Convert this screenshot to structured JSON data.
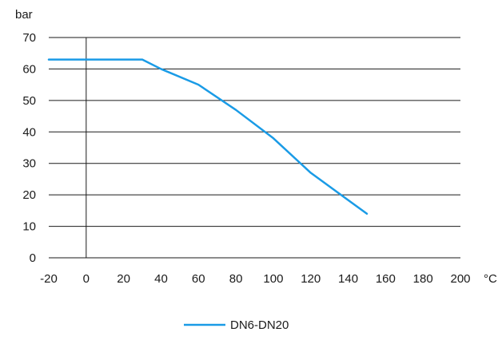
{
  "chart_data": {
    "type": "line",
    "ylabel": "bar",
    "xlabel": "°C",
    "xlim": [
      -20,
      200
    ],
    "ylim": [
      0,
      70
    ],
    "x_ticks": [
      -20,
      0,
      20,
      40,
      60,
      80,
      100,
      120,
      140,
      160,
      180,
      200
    ],
    "y_ticks": [
      0,
      10,
      20,
      30,
      40,
      50,
      60,
      70
    ],
    "grid": "horizontal",
    "legend_position": "bottom-center",
    "series": [
      {
        "name": "DN6-DN20",
        "color": "#1a9be6",
        "x": [
          -20,
          30,
          40,
          60,
          80,
          100,
          120,
          150
        ],
        "y": [
          63,
          63,
          60,
          55,
          47,
          38,
          27,
          14
        ]
      }
    ]
  }
}
